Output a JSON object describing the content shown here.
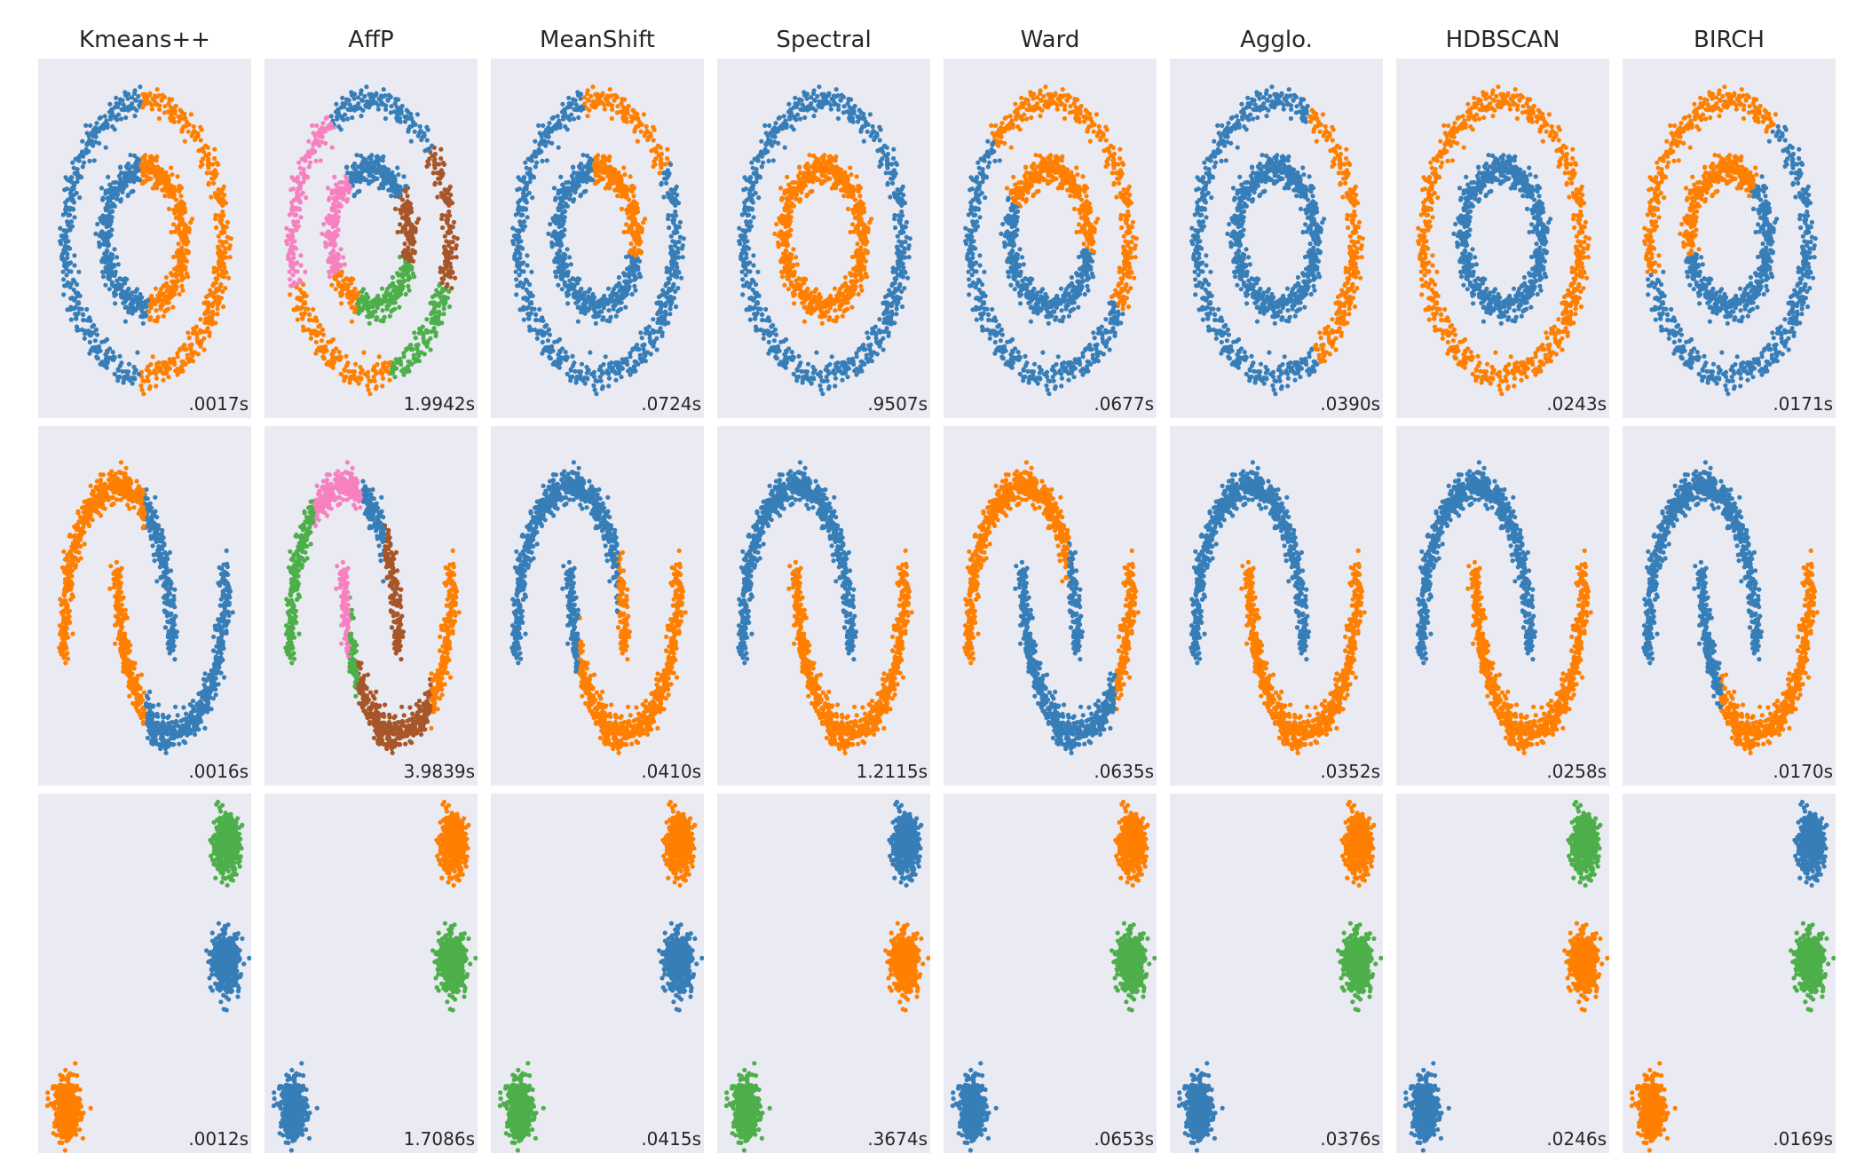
{
  "palette": {
    "blue": "#377eb8",
    "orange": "#ff7f00",
    "green": "#4daf4a",
    "pink": "#f781bf",
    "brown": "#a65628",
    "background": "#eaeaf2"
  },
  "chart_data": {
    "type": "scatter",
    "algorithms": [
      "Kmeans++",
      "AffP",
      "MeanShift",
      "Spectral",
      "Ward",
      "Agglo.",
      "HDBSCAN",
      "BIRCH"
    ],
    "datasets": [
      "noisy_circles",
      "noisy_moons",
      "blobs"
    ],
    "grid": false,
    "timings": [
      [
        ".0017s",
        "1.9942s",
        ".0724s",
        ".9507s",
        ".0677s",
        ".0390s",
        ".0243s",
        ".0171s"
      ],
      [
        ".0016s",
        "3.9839s",
        ".0410s",
        "1.2115s",
        ".0635s",
        ".0352s",
        ".0258s",
        ".0170s"
      ],
      [
        ".0012s",
        "1.7086s",
        ".0415s",
        ".3674s",
        ".0653s",
        ".0376s",
        ".0246s",
        ".0169s"
      ]
    ],
    "cluster_colors": {
      "circles": [
        "kmeans_split",
        "affp_multi",
        "meanshift_split",
        "two_rings",
        "ward_split",
        "one_ring",
        "two_rings_inv",
        "birch_split"
      ],
      "moons": [
        "kmeans_split",
        "affp_multi",
        "meanshift_split",
        "two_moons",
        "ward_split",
        "two_moons",
        "two_moons",
        "two_moons_birch"
      ],
      "blobs": [
        [
          "green",
          "blue",
          "orange"
        ],
        [
          "orange",
          "green",
          "blue"
        ],
        [
          "orange",
          "blue",
          "green"
        ],
        [
          "blue",
          "orange",
          "green"
        ],
        [
          "orange",
          "green",
          "blue"
        ],
        [
          "orange",
          "green",
          "blue"
        ],
        [
          "green",
          "orange",
          "blue"
        ],
        [
          "blue",
          "green",
          "orange"
        ]
      ]
    }
  }
}
